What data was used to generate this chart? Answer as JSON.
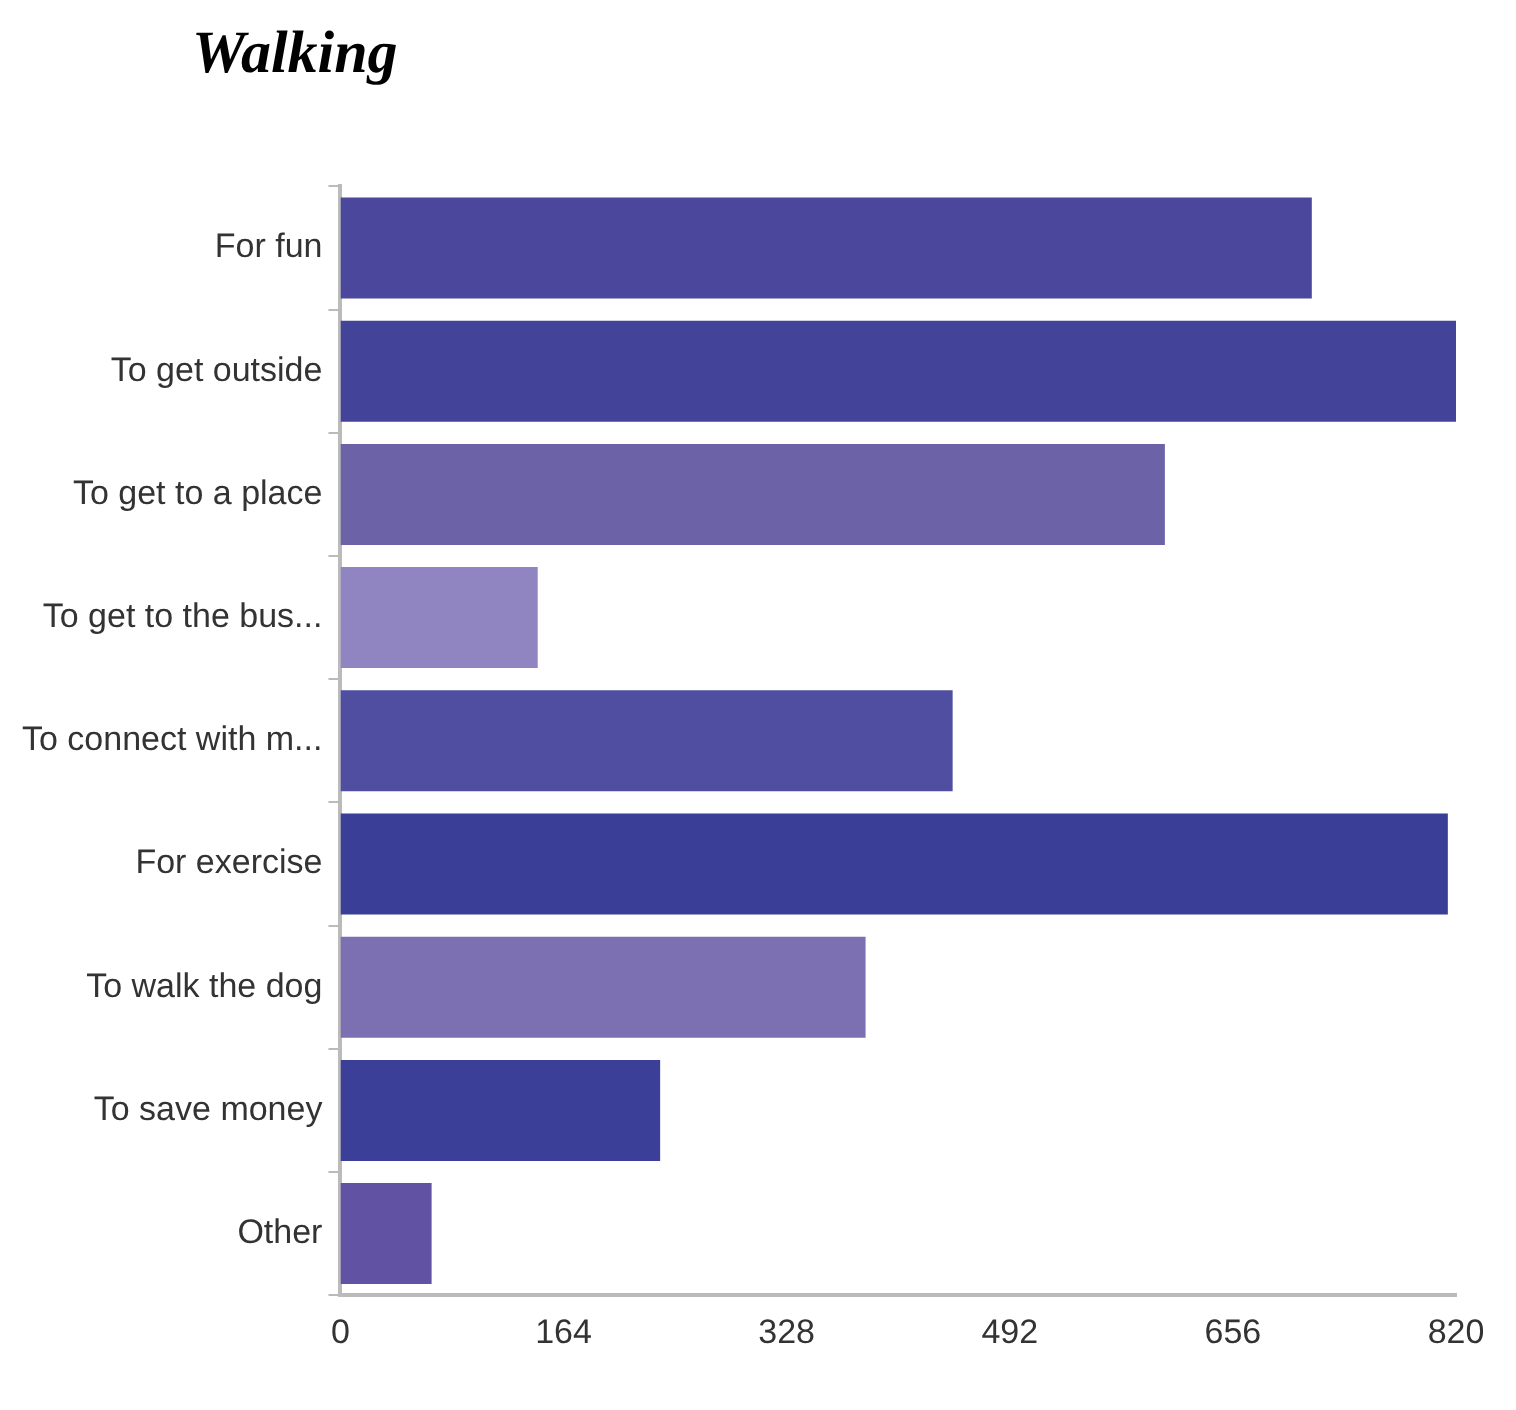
{
  "chart_data": {
    "type": "bar",
    "title": "Walking",
    "orientation": "horizontal",
    "categories": [
      "For fun",
      "To get outside",
      "To get to a place",
      "To get to the bus...",
      "To connect with m...",
      "For exercise",
      "To walk the dog",
      "To save money",
      "Other"
    ],
    "values": [
      714,
      820,
      606,
      145,
      450,
      814,
      386,
      235,
      67
    ],
    "colors": [
      "#4a479c",
      "#424399",
      "#6c62a8",
      "#9085c0",
      "#4f4ea0",
      "#3a3e96",
      "#7d70b2",
      "#3c3f97",
      "#6152a3"
    ],
    "xlim": [
      0,
      820
    ],
    "xticks": [
      0,
      164,
      328,
      492,
      656,
      820
    ]
  }
}
